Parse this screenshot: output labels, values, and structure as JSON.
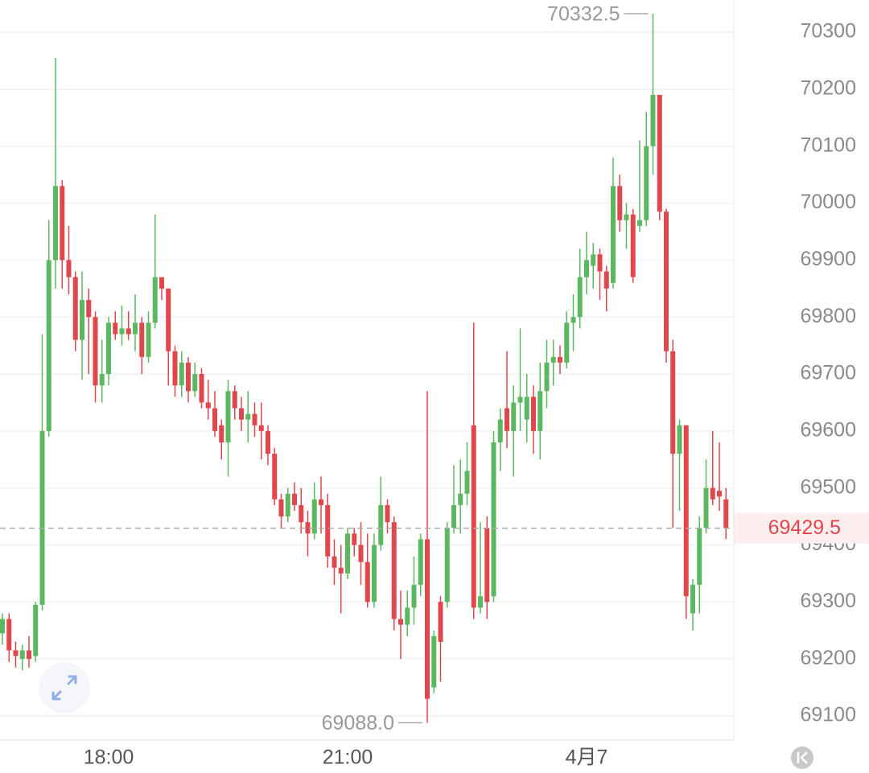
{
  "chart_data": {
    "type": "candlestick",
    "categories": [
      null,
      null,
      null,
      null,
      null,
      null,
      null,
      null,
      null,
      null,
      null,
      null,
      null,
      null,
      null,
      null,
      "18:00",
      null,
      null,
      null,
      null,
      null,
      null,
      null,
      null,
      null,
      null,
      null,
      null,
      null,
      null,
      null,
      null,
      null,
      null,
      null,
      null,
      null,
      null,
      null,
      null,
      null,
      null,
      null,
      null,
      null,
      null,
      null,
      null,
      null,
      null,
      null,
      "21:00",
      null,
      null,
      null,
      null,
      null,
      null,
      null,
      null,
      null,
      null,
      null,
      null,
      null,
      null,
      null,
      null,
      null,
      null,
      null,
      null,
      null,
      null,
      null,
      null,
      null,
      null,
      null,
      null,
      null,
      null,
      null,
      null,
      null,
      null,
      null,
      "4月7",
      null,
      null,
      null,
      null,
      null,
      null,
      null,
      null,
      null,
      null,
      null,
      null,
      null,
      null,
      null,
      null,
      null,
      null,
      null,
      null,
      null
    ],
    "open": [
      69245,
      69270,
      69215,
      69200,
      69215,
      69205,
      69295,
      69600,
      69900,
      70030,
      69900,
      69870,
      69760,
      69830,
      69800,
      69680,
      69700,
      69790,
      69770,
      69780,
      69770,
      69790,
      69730,
      69790,
      69870,
      69850,
      69740,
      69680,
      69720,
      69670,
      69700,
      69650,
      69640,
      69610,
      69580,
      69670,
      69640,
      69620,
      69630,
      69610,
      69600,
      69560,
      69480,
      69450,
      69490,
      69470,
      69440,
      69420,
      69480,
      69470,
      69380,
      69360,
      69350,
      69420,
      69400,
      69370,
      69300,
      69400,
      69470,
      69440,
      69270,
      69260,
      69290,
      69330,
      69410,
      69150,
      69300,
      69300,
      69430,
      69470,
      69490,
      69610,
      69290,
      69430,
      69310,
      69580,
      69640,
      69600,
      69650,
      69620,
      69660,
      69600,
      69670,
      69720,
      69730,
      69720,
      69790,
      69800,
      69870,
      69890,
      69910,
      69880,
      69860,
      70030,
      69970,
      69980,
      69960,
      69970,
      70100,
      70190,
      69985,
      69740,
      69560,
      69610,
      69280,
      69330,
      69430,
      69500,
      69495,
      69480
    ],
    "high": [
      69280,
      69280,
      69230,
      69225,
      69240,
      69300,
      69770,
      69970,
      70255,
      70040,
      69960,
      69880,
      69880,
      69850,
      69810,
      69760,
      69800,
      69810,
      69820,
      69810,
      69840,
      69800,
      69810,
      69980,
      69870,
      69850,
      69750,
      69740,
      69730,
      69720,
      69710,
      69690,
      69670,
      69620,
      69690,
      69680,
      69660,
      69670,
      69650,
      69650,
      69610,
      69570,
      69490,
      69500,
      69510,
      69500,
      69460,
      69510,
      69520,
      69490,
      69410,
      69400,
      69430,
      69430,
      69440,
      69420,
      69420,
      69520,
      69480,
      69450,
      69320,
      69320,
      69380,
      69420,
      69670,
      69250,
      69310,
      69440,
      69540,
      69550,
      69580,
      69790,
      69440,
      69450,
      69600,
      69640,
      69740,
      69680,
      69780,
      69700,
      69680,
      69720,
      69760,
      69760,
      69750,
      69810,
      69840,
      69920,
      69950,
      69930,
      69920,
      69890,
      70080,
      70050,
      70000,
      69990,
      70110,
      70160,
      70332.5,
      70190,
      69990,
      69760,
      69620,
      69610,
      69340,
      69450,
      69550,
      69600,
      69580,
      69500
    ],
    "low": [
      69225,
      69195,
      69185,
      69180,
      69185,
      69195,
      69285,
      69590,
      69850,
      69850,
      69840,
      69740,
      69690,
      69700,
      69650,
      69650,
      69680,
      69760,
      69750,
      69760,
      69740,
      69700,
      69720,
      69780,
      69830,
      69680,
      69660,
      69660,
      69650,
      69660,
      69640,
      69620,
      69590,
      69550,
      69520,
      69620,
      69600,
      69580,
      69590,
      69550,
      69540,
      69470,
      69430,
      69440,
      69460,
      69420,
      69380,
      69410,
      69420,
      69360,
      69330,
      69280,
      69340,
      69380,
      69330,
      69290,
      69290,
      69390,
      69420,
      69250,
      69200,
      69240,
      69260,
      69310,
      69088,
      69140,
      69160,
      69290,
      69420,
      69420,
      69470,
      69270,
      69280,
      69270,
      69300,
      69530,
      69570,
      69520,
      69600,
      69580,
      69560,
      69550,
      69640,
      69680,
      69700,
      69710,
      69740,
      69780,
      69840,
      69850,
      69830,
      69810,
      69850,
      69950,
      69920,
      69860,
      69950,
      69960,
      70050,
      69970,
      69720,
      69430,
      69460,
      69270,
      69250,
      69280,
      69420,
      69470,
      69460,
      69410
    ],
    "close": [
      69270,
      69215,
      69205,
      69215,
      69200,
      69295,
      69600,
      69900,
      70030,
      69900,
      69870,
      69760,
      69830,
      69800,
      69680,
      69700,
      69790,
      69770,
      69780,
      69770,
      69790,
      69730,
      69790,
      69870,
      69850,
      69740,
      69680,
      69720,
      69670,
      69700,
      69650,
      69640,
      69600,
      69580,
      69670,
      69640,
      69620,
      69630,
      69610,
      69600,
      69560,
      69480,
      69450,
      69490,
      69470,
      69440,
      69420,
      69480,
      69470,
      69380,
      69360,
      69350,
      69420,
      69400,
      69370,
      69300,
      69400,
      69470,
      69440,
      69270,
      69260,
      69290,
      69330,
      69410,
      69130,
      69240,
      69230,
      69430,
      69470,
      69490,
      69530,
      69290,
      69310,
      69300,
      69580,
      69620,
      69600,
      69650,
      69660,
      69660,
      69600,
      69670,
      69720,
      69730,
      69720,
      69790,
      69800,
      69870,
      69900,
      69910,
      69880,
      69850,
      70030,
      69970,
      69980,
      69870,
      69970,
      70100,
      70190,
      69985,
      69740,
      69560,
      69610,
      69310,
      69330,
      69430,
      69500,
      69480,
      69485,
      69429.5
    ],
    "up_color": "#5cb860",
    "down_color": "#e0474d",
    "ylim": [
      69057.65,
      70356.47
    ],
    "yticks": [
      69100,
      69200,
      69300,
      69400,
      69500,
      69600,
      69700,
      69800,
      69900,
      70000,
      70100,
      70200,
      70300
    ],
    "grid": true,
    "high_annotation": {
      "value": 70332.5,
      "label": "70332.5"
    },
    "low_annotation": {
      "value": 69088.0,
      "label": "69088.0"
    },
    "last_price": 69429.5
  }
}
